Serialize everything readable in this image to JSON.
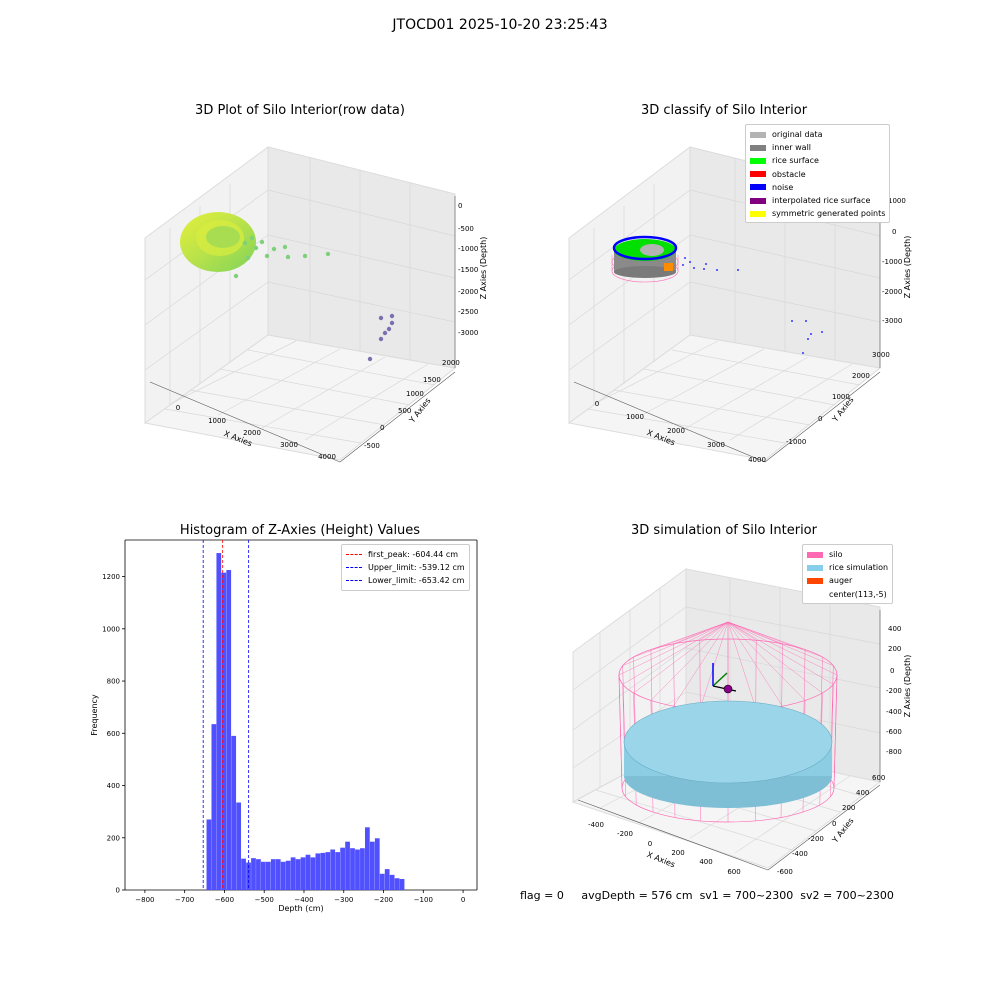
{
  "suptitle": "JTOCD01 2025-10-20 23:25:43",
  "panels": {
    "p1_title": "3D Plot of Silo Interior(row data)",
    "p2_title": "3D classify of Silo Interior",
    "p3_title": "Histogram of Z-Axies (Height) Values",
    "p4_title": "3D simulation of Silo Interior"
  },
  "axes3d": {
    "p1": {
      "x_label": "X Axies",
      "y_label": "Y Axies",
      "z_label": "Z Axies (Depth)",
      "x_ticks": [
        "0",
        "1000",
        "2000",
        "3000",
        "4000"
      ],
      "y_ticks": [
        "-500",
        "0",
        "500",
        "1000",
        "1500",
        "2000"
      ],
      "z_ticks": [
        "0",
        "-500",
        "-1000",
        "-1500",
        "-2000",
        "-2500",
        "-3000"
      ]
    },
    "p2": {
      "x_label": "X Axies",
      "y_label": "Y Axies",
      "z_label": "Z Axies (Depth)",
      "x_ticks": [
        "0",
        "1000",
        "2000",
        "3000",
        "4000"
      ],
      "y_ticks": [
        "-1000",
        "0",
        "1000",
        "2000",
        "3000"
      ],
      "z_ticks": [
        "1000",
        "0",
        "-1000",
        "-2000",
        "-3000"
      ]
    },
    "p4": {
      "x_label": "X Axies",
      "y_label": "Y Axies",
      "z_label": "Z Axies (Depth)",
      "x_ticks": [
        "-400",
        "-200",
        "0",
        "200",
        "400",
        "600"
      ],
      "y_ticks": [
        "-600",
        "-400",
        "-200",
        "0",
        "200",
        "400",
        "600"
      ],
      "z_ticks": [
        "400",
        "200",
        "0",
        "-200",
        "-400",
        "-600",
        "-800"
      ]
    }
  },
  "legends": {
    "p2": [
      {
        "label": "original data",
        "color": "#b3b3b3"
      },
      {
        "label": "inner wall",
        "color": "#808080"
      },
      {
        "label": "rice surface",
        "color": "#00ff00"
      },
      {
        "label": "obstacle",
        "color": "#ff0000"
      },
      {
        "label": "noise",
        "color": "#0000ff"
      },
      {
        "label": "interpolated rice surface",
        "color": "#800080"
      },
      {
        "label": "symmetric generated points",
        "color": "#ffff00"
      }
    ],
    "p3": [
      {
        "label": "first_peak: -604.44 cm",
        "color": "#ff0000"
      },
      {
        "label": "Upper_limit: -539.12 cm",
        "color": "#0000ff"
      },
      {
        "label": "Lower_limit: -653.42 cm",
        "color": "#0000ff"
      }
    ],
    "p4": [
      {
        "label": "silo",
        "color": "#ff69b4"
      },
      {
        "label": "rice simulation",
        "color": "#87ceeb"
      },
      {
        "label": "auger",
        "color": "#ff4500"
      },
      {
        "label": "center(113,-5)",
        "color": "#ffffff"
      }
    ]
  },
  "chart_data": [
    {
      "type": "histogram",
      "title": "Histogram of Z-Axies (Height) Values",
      "xlabel": "Depth (cm)",
      "ylabel": "Frequency",
      "xlim": [
        -850,
        35
      ],
      "ylim": [
        0,
        1340
      ],
      "x_ticks": [
        -800,
        -700,
        -600,
        -500,
        -400,
        -300,
        -200,
        -100,
        0
      ],
      "y_ticks": [
        0,
        200,
        400,
        600,
        800,
        1000,
        1200
      ],
      "bar_color": "#5050ff",
      "bin_start": -645,
      "bin_width": 12.45,
      "values": [
        270,
        635,
        1290,
        1215,
        1225,
        590,
        335,
        120,
        105,
        122,
        118,
        108,
        108,
        118,
        118,
        108,
        112,
        125,
        118,
        125,
        135,
        125,
        140,
        142,
        145,
        155,
        145,
        162,
        185,
        160,
        155,
        160,
        240,
        185,
        198,
        62,
        80,
        58,
        45,
        42
      ],
      "vlines": [
        {
          "x": -604.44,
          "color": "#ff0000",
          "label": "first_peak: -604.44 cm"
        },
        {
          "x": -539.12,
          "color": "#0000ff",
          "label": "Upper_limit: -539.12 cm"
        },
        {
          "x": -653.42,
          "color": "#0000ff",
          "label": "Lower_limit: -653.42 cm"
        }
      ]
    }
  ],
  "status": {
    "flag": "flag = 0",
    "avg_depth": "avgDepth = 576 cm",
    "sv1": "sv1 = 700~2300",
    "sv2": "sv2 = 700~2300"
  }
}
